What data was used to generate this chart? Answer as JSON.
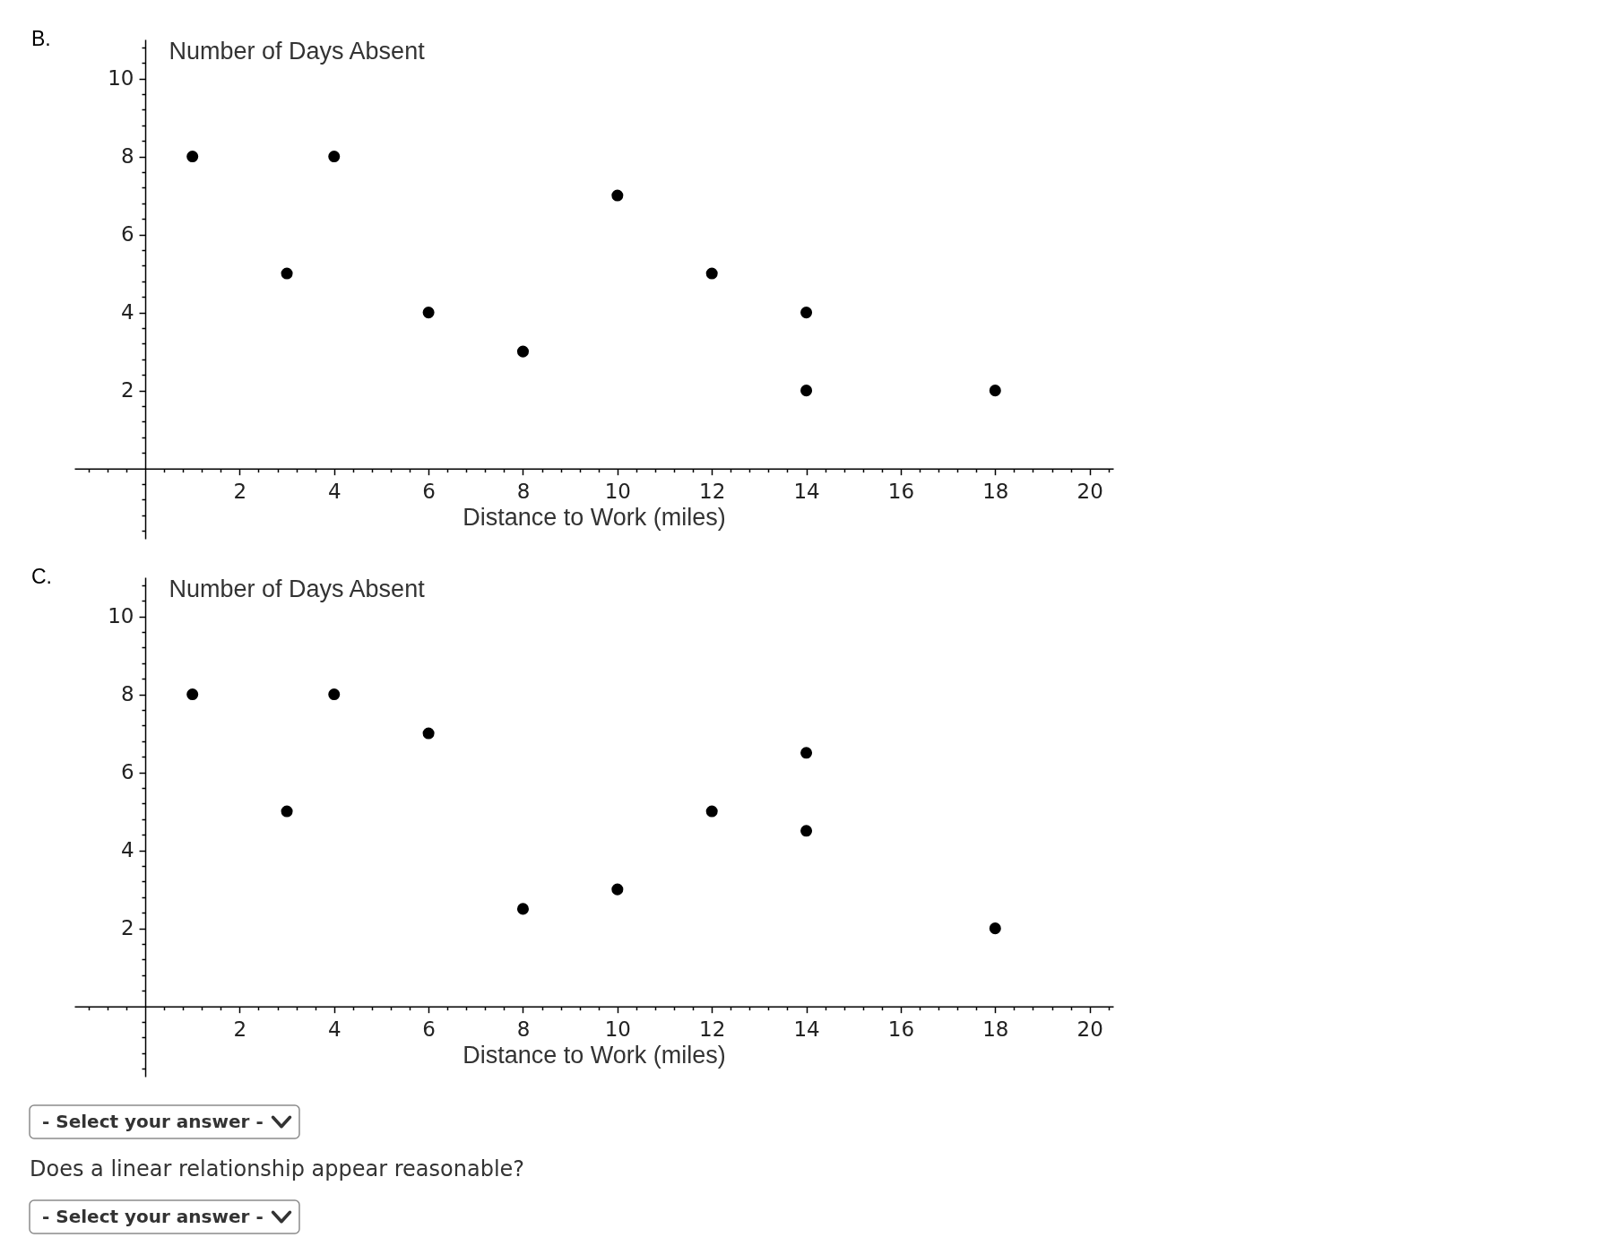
{
  "chart_data": [
    {
      "type": "scatter",
      "title": "B.",
      "xlabel": "Distance to Work (miles)",
      "ylabel": "Number of Days Absent",
      "x": [
        1,
        3,
        4,
        6,
        8,
        10,
        12,
        14,
        14,
        18
      ],
      "values": [
        8,
        5,
        8,
        4,
        3,
        7,
        5,
        4,
        2,
        2
      ],
      "color": "#000000",
      "marker": "circle",
      "xlim": [
        -1.5,
        20.5
      ],
      "ylim": [
        -1.8,
        11
      ],
      "xticks": [
        {
          "value": -1.2,
          "label": null
        },
        {
          "value": -0.8,
          "label": null
        },
        {
          "value": -0.4,
          "label": null
        },
        {
          "value": 0.4,
          "label": null
        },
        {
          "value": 0.8,
          "label": null
        },
        {
          "value": 1.2,
          "label": null
        },
        {
          "value": 1.6,
          "label": null
        },
        2,
        {
          "value": 2.4,
          "label": null
        },
        {
          "value": 2.8,
          "label": null
        },
        {
          "value": 3.2,
          "label": null
        },
        {
          "value": 3.6,
          "label": null
        },
        4,
        {
          "value": 4.4,
          "label": null
        },
        {
          "value": 4.8,
          "label": null
        },
        {
          "value": 5.2,
          "label": null
        },
        {
          "value": 5.6,
          "label": null
        },
        6,
        {
          "value": 6.4,
          "label": null
        },
        {
          "value": 6.8,
          "label": null
        },
        {
          "value": 7.2,
          "label": null
        },
        {
          "value": 7.6,
          "label": null
        },
        8,
        {
          "value": 8.4,
          "label": null
        },
        {
          "value": 8.8,
          "label": null
        },
        {
          "value": 9.2,
          "label": null
        },
        {
          "value": 9.6,
          "label": null
        },
        10,
        {
          "value": 10.4,
          "label": null
        },
        {
          "value": 10.8,
          "label": null
        },
        {
          "value": 11.2,
          "label": null
        },
        {
          "value": 11.6,
          "label": null
        },
        12,
        {
          "value": 12.4,
          "label": null
        },
        {
          "value": 12.8,
          "label": null
        },
        {
          "value": 13.2,
          "label": null
        },
        {
          "value": 13.6,
          "label": null
        },
        14,
        {
          "value": 14.4,
          "label": null
        },
        {
          "value": 14.8,
          "label": null
        },
        {
          "value": 15.2,
          "label": null
        },
        {
          "value": 15.6,
          "label": null
        },
        16,
        {
          "value": 16.4,
          "label": null
        },
        {
          "value": 16.8,
          "label": null
        },
        {
          "value": 17.2,
          "label": null
        },
        {
          "value": 17.6,
          "label": null
        },
        18,
        {
          "value": 18.4,
          "label": null
        },
        {
          "value": 18.8,
          "label": null
        },
        {
          "value": 19.2,
          "label": null
        },
        {
          "value": 19.6,
          "label": null
        },
        20,
        {
          "value": 20.4,
          "label": null
        }
      ],
      "yticks": [
        {
          "value": -1.6,
          "label": null
        },
        {
          "value": -1.2,
          "label": null
        },
        {
          "value": -0.8,
          "label": null
        },
        {
          "value": -0.4,
          "label": null
        },
        {
          "value": 0.4,
          "label": null
        },
        {
          "value": 0.8,
          "label": null
        },
        {
          "value": 1.2,
          "label": null
        },
        {
          "value": 1.6,
          "label": null
        },
        2,
        {
          "value": 2.4,
          "label": null
        },
        {
          "value": 2.8,
          "label": null
        },
        {
          "value": 3.2,
          "label": null
        },
        {
          "value": 3.6,
          "label": null
        },
        4,
        {
          "value": 4.4,
          "label": null
        },
        {
          "value": 4.8,
          "label": null
        },
        {
          "value": 5.2,
          "label": null
        },
        {
          "value": 5.6,
          "label": null
        },
        6,
        {
          "value": 6.4,
          "label": null
        },
        {
          "value": 6.8,
          "label": null
        },
        {
          "value": 7.2,
          "label": null
        },
        {
          "value": 7.6,
          "label": null
        },
        8,
        {
          "value": 8.4,
          "label": null
        },
        {
          "value": 8.8,
          "label": null
        },
        {
          "value": 9.2,
          "label": null
        },
        {
          "value": 9.6,
          "label": null
        },
        10,
        {
          "value": 10.4,
          "label": null
        },
        {
          "value": 10.8,
          "label": null
        }
      ]
    },
    {
      "type": "scatter",
      "title": "C.",
      "xlabel": "Distance to Work (miles)",
      "ylabel": "Number of Days Absent",
      "x": [
        1,
        3,
        4,
        6,
        8,
        10,
        12,
        14,
        14,
        18
      ],
      "values": [
        8,
        5,
        8,
        7,
        2.5,
        3,
        5,
        6.5,
        4.5,
        2
      ],
      "color": "#000000",
      "marker": "circle",
      "xlim": [
        -1.5,
        20.5
      ],
      "ylim": [
        -1.8,
        11
      ],
      "xticks": [
        {
          "value": -1.2,
          "label": null
        },
        {
          "value": -0.8,
          "label": null
        },
        {
          "value": -0.4,
          "label": null
        },
        {
          "value": 0.4,
          "label": null
        },
        {
          "value": 0.8,
          "label": null
        },
        {
          "value": 1.2,
          "label": null
        },
        {
          "value": 1.6,
          "label": null
        },
        2,
        {
          "value": 2.4,
          "label": null
        },
        {
          "value": 2.8,
          "label": null
        },
        {
          "value": 3.2,
          "label": null
        },
        {
          "value": 3.6,
          "label": null
        },
        4,
        {
          "value": 4.4,
          "label": null
        },
        {
          "value": 4.8,
          "label": null
        },
        {
          "value": 5.2,
          "label": null
        },
        {
          "value": 5.6,
          "label": null
        },
        6,
        {
          "value": 6.4,
          "label": null
        },
        {
          "value": 6.8,
          "label": null
        },
        {
          "value": 7.2,
          "label": null
        },
        {
          "value": 7.6,
          "label": null
        },
        8,
        {
          "value": 8.4,
          "label": null
        },
        {
          "value": 8.8,
          "label": null
        },
        {
          "value": 9.2,
          "label": null
        },
        {
          "value": 9.6,
          "label": null
        },
        10,
        {
          "value": 10.4,
          "label": null
        },
        {
          "value": 10.8,
          "label": null
        },
        {
          "value": 11.2,
          "label": null
        },
        {
          "value": 11.6,
          "label": null
        },
        12,
        {
          "value": 12.4,
          "label": null
        },
        {
          "value": 12.8,
          "label": null
        },
        {
          "value": 13.2,
          "label": null
        },
        {
          "value": 13.6,
          "label": null
        },
        14,
        {
          "value": 14.4,
          "label": null
        },
        {
          "value": 14.8,
          "label": null
        },
        {
          "value": 15.2,
          "label": null
        },
        {
          "value": 15.6,
          "label": null
        },
        16,
        {
          "value": 16.4,
          "label": null
        },
        {
          "value": 16.8,
          "label": null
        },
        {
          "value": 17.2,
          "label": null
        },
        {
          "value": 17.6,
          "label": null
        },
        18,
        {
          "value": 18.4,
          "label": null
        },
        {
          "value": 18.8,
          "label": null
        },
        {
          "value": 19.2,
          "label": null
        },
        {
          "value": 19.6,
          "label": null
        },
        20,
        {
          "value": 20.4,
          "label": null
        }
      ],
      "yticks": [
        {
          "value": -1.6,
          "label": null
        },
        {
          "value": -1.2,
          "label": null
        },
        {
          "value": -0.8,
          "label": null
        },
        {
          "value": -0.4,
          "label": null
        },
        {
          "value": 0.4,
          "label": null
        },
        {
          "value": 0.8,
          "label": null
        },
        {
          "value": 1.2,
          "label": null
        },
        {
          "value": 1.6,
          "label": null
        },
        2,
        {
          "value": 2.4,
          "label": null
        },
        {
          "value": 2.8,
          "label": null
        },
        {
          "value": 3.2,
          "label": null
        },
        {
          "value": 3.6,
          "label": null
        },
        4,
        {
          "value": 4.4,
          "label": null
        },
        {
          "value": 4.8,
          "label": null
        },
        {
          "value": 5.2,
          "label": null
        },
        {
          "value": 5.6,
          "label": null
        },
        6,
        {
          "value": 6.4,
          "label": null
        },
        {
          "value": 6.8,
          "label": null
        },
        {
          "value": 7.2,
          "label": null
        },
        {
          "value": 7.6,
          "label": null
        },
        8,
        {
          "value": 8.4,
          "label": null
        },
        {
          "value": 8.8,
          "label": null
        },
        {
          "value": 9.2,
          "label": null
        },
        {
          "value": 9.6,
          "label": null
        },
        10,
        {
          "value": 10.4,
          "label": null
        },
        {
          "value": 10.8,
          "label": null
        }
      ]
    },
    {
      "type": "other",
      "annotations": [
        "- Select your answer -",
        "Does a linear relationship appear reasonable?",
        "- Select your answer -"
      ]
    }
  ]
}
